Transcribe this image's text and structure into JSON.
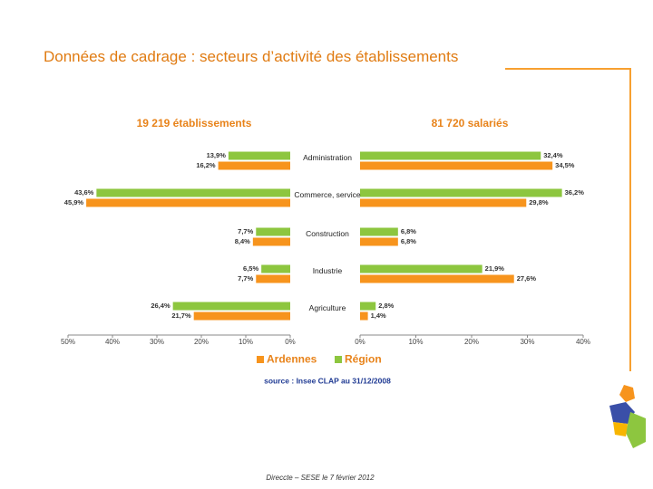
{
  "title": "Données de cadrage : secteurs d’activité des établissements",
  "source": "source : Insee CLAP au 31/12/2008",
  "footer": "Direccte – SESE le 7 février 2012",
  "chart_data": [
    {
      "type": "hbar",
      "title": "19 219 établissements",
      "reversed": true,
      "categories": [
        "Administration",
        "Commerce, service",
        "Construction",
        "Industrie",
        "Agriculture"
      ],
      "series": [
        {
          "name": "Région",
          "color": "#8dc63f",
          "values": [
            13.9,
            43.6,
            7.7,
            6.5,
            26.4
          ],
          "value_labels": [
            "13,9%",
            "43,6%",
            "7,7%",
            "6,5%",
            "26,4%"
          ]
        },
        {
          "name": "Ardennes",
          "color": "#f7941d",
          "values": [
            16.2,
            45.9,
            8.4,
            7.7,
            21.7
          ],
          "value_labels": [
            "16,2%",
            "45,9%",
            "8,4%",
            "7,7%",
            "21,7%"
          ]
        }
      ],
      "xlim": [
        0,
        50
      ],
      "xticks": [
        {
          "value": 50,
          "label": "50%"
        },
        {
          "value": 40,
          "label": "40%"
        },
        {
          "value": 30,
          "label": "30%"
        },
        {
          "value": 20,
          "label": "20%"
        },
        {
          "value": 10,
          "label": "10%"
        },
        {
          "value": 0,
          "label": "0%"
        }
      ]
    },
    {
      "type": "hbar",
      "title": "81 720 salariés",
      "reversed": false,
      "series": [
        {
          "name": "Région",
          "color": "#8dc63f",
          "values": [
            32.4,
            36.2,
            6.8,
            21.9,
            2.8
          ],
          "value_labels": [
            "32,4%",
            "36,2%",
            "6,8%",
            "21,9%",
            "2,8%"
          ]
        },
        {
          "name": "Ardennes",
          "color": "#f7941d",
          "values": [
            34.5,
            29.8,
            6.8,
            27.6,
            1.4
          ],
          "value_labels": [
            "34,5%",
            "29,8%",
            "6,8%",
            "27,6%",
            "1,4%"
          ]
        }
      ],
      "xlim": [
        0,
        40
      ],
      "xticks": [
        {
          "value": 0,
          "label": "0%"
        },
        {
          "value": 10,
          "label": "10%"
        },
        {
          "value": 20,
          "label": "20%"
        },
        {
          "value": 30,
          "label": "30%"
        },
        {
          "value": 40,
          "label": "40%"
        }
      ]
    }
  ]
}
